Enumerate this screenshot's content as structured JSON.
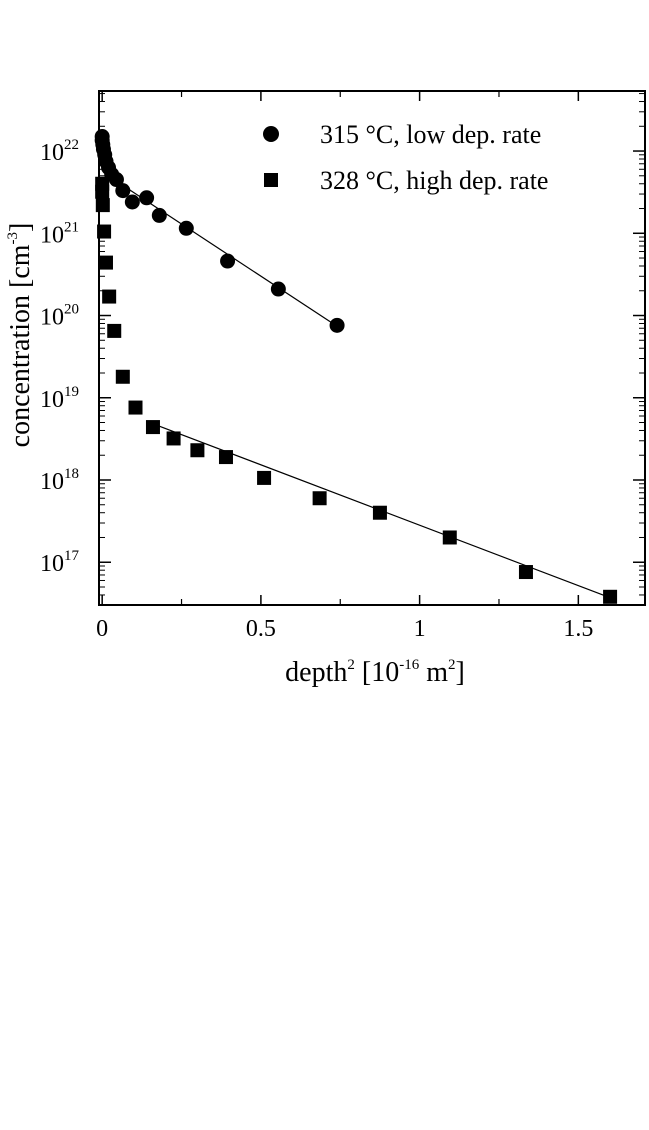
{
  "chart_data": {
    "type": "scatter",
    "xlabel": {
      "base": "depth",
      "exp": "2",
      "unit_open": " [10",
      "unit_exp": "-16",
      "unit_mid": " m",
      "unit_exp2": "2",
      "unit_close": "]"
    },
    "ylabel": {
      "base": "concentration [cm",
      "exp": "-3",
      "close": "]"
    },
    "x_ticks": [
      {
        "value": 0,
        "label": "0"
      },
      {
        "value": 0.5,
        "label": "0.5"
      },
      {
        "value": 1,
        "label": "1"
      },
      {
        "value": 1.5,
        "label": "1.5"
      }
    ],
    "x_minor_ticks": [
      0.25,
      0.75,
      1.25
    ],
    "y_ticks": [
      {
        "value": 17,
        "base": "10",
        "exp": "17"
      },
      {
        "value": 18,
        "base": "10",
        "exp": "18"
      },
      {
        "value": 19,
        "base": "10",
        "exp": "19"
      },
      {
        "value": 20,
        "base": "10",
        "exp": "20"
      },
      {
        "value": 21,
        "base": "10",
        "exp": "21"
      },
      {
        "value": 22,
        "base": "10",
        "exp": "22"
      }
    ],
    "xlim": [
      -0.01,
      1.71
    ],
    "ylim_log10": [
      16.48,
      22.73
    ],
    "y_scale": "log",
    "legend": {
      "position": "top-right"
    },
    "series": [
      {
        "name": "315 °C, low dep. rate",
        "marker": "circle",
        "points": [
          [
            0.0,
            1.5e+22
          ],
          [
            0.0,
            1.35e+22
          ],
          [
            0.002,
            1.2e+22
          ],
          [
            0.004,
            1.05e+22
          ],
          [
            0.008,
            9e+21
          ],
          [
            0.012,
            7.5e+21
          ],
          [
            0.02,
            6.3e+21
          ],
          [
            0.03,
            5.2e+21
          ],
          [
            0.045,
            4.5e+21
          ],
          [
            0.065,
            3.3e+21
          ],
          [
            0.095,
            2.4e+21
          ],
          [
            0.14,
            2.7e+21
          ],
          [
            0.18,
            1.65e+21
          ],
          [
            0.265,
            1.15e+21
          ],
          [
            0.395,
            4.6e+20
          ],
          [
            0.555,
            2.1e+20
          ],
          [
            0.74,
            7.6e+19
          ]
        ],
        "fit": [
          [
            0.08,
            3.5e+21
          ],
          [
            0.74,
            7.4e+19
          ]
        ]
      },
      {
        "name": "328 °C, high dep. rate",
        "marker": "square",
        "points": [
          [
            0.0,
            4e+21
          ],
          [
            0.0,
            3.2e+21
          ],
          [
            0.002,
            2.2e+21
          ],
          [
            0.006,
            1.05e+21
          ],
          [
            0.012,
            4.4e+20
          ],
          [
            0.022,
            1.7e+20
          ],
          [
            0.038,
            6.5e+19
          ],
          [
            0.065,
            1.8e+19
          ],
          [
            0.105,
            7.6e+18
          ],
          [
            0.16,
            4.4e+18
          ],
          [
            0.225,
            3.2e+18
          ],
          [
            0.3,
            2.3e+18
          ],
          [
            0.39,
            1.9e+18
          ],
          [
            0.51,
            1.06e+18
          ],
          [
            0.685,
            6e+17
          ],
          [
            0.875,
            4e+17
          ],
          [
            1.095,
            2e+17
          ],
          [
            1.335,
            7.6e+16
          ],
          [
            1.6,
            3.8e+16
          ]
        ],
        "fit": [
          [
            0.15,
            5e+18
          ],
          [
            1.6,
            3.7e+16
          ]
        ]
      }
    ]
  }
}
